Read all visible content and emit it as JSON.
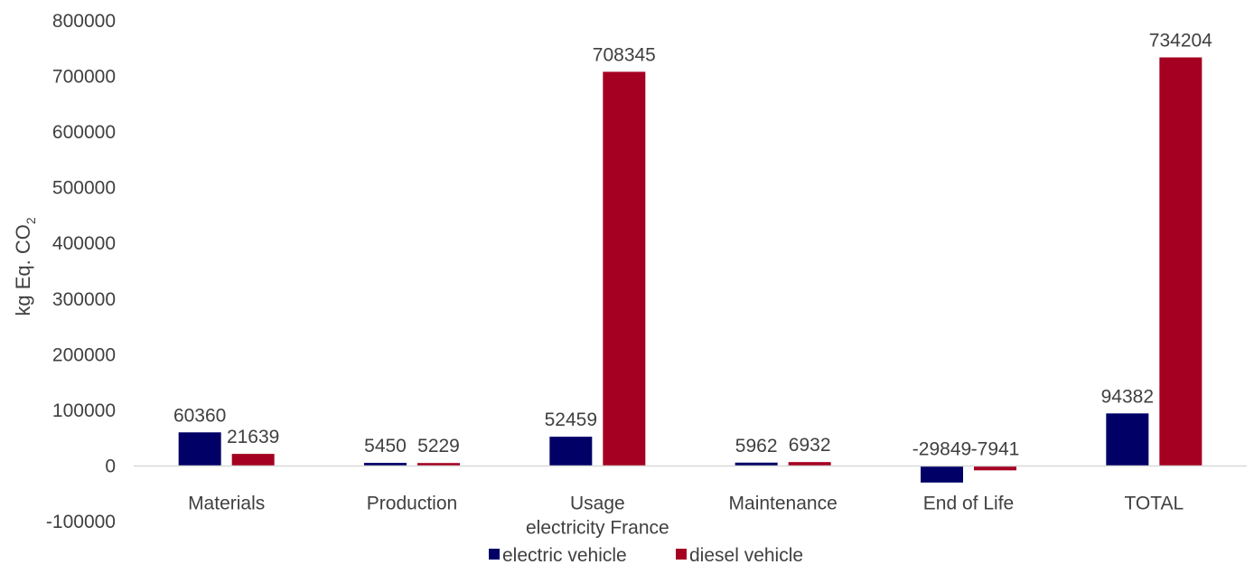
{
  "chart_data": {
    "type": "bar",
    "categories": [
      [
        "Materials"
      ],
      [
        "Production"
      ],
      [
        "Usage",
        "electricity France"
      ],
      [
        "Maintenance"
      ],
      [
        "End of Life"
      ],
      [
        "TOTAL"
      ]
    ],
    "series": [
      {
        "name": "electric vehicle",
        "color": "#000066",
        "values": [
          60360,
          5450,
          52459,
          5962,
          -29849,
          94382
        ]
      },
      {
        "name": "diesel vehicle",
        "color": "#A50021",
        "values": [
          21639,
          5229,
          708345,
          6932,
          -7941,
          734204
        ]
      }
    ],
    "ylabel": {
      "main": "kg Eq. CO",
      "subscript": "2"
    },
    "ylim": [
      -100000,
      800000
    ],
    "yticks": [
      -100000,
      0,
      100000,
      200000,
      300000,
      400000,
      500000,
      600000,
      700000,
      800000
    ],
    "ytick_labels": [
      "-100000",
      "0",
      "100000",
      "200000",
      "300000",
      "400000",
      "500000",
      "600000",
      "700000",
      "800000"
    ],
    "grid": false,
    "legend_position": "bottom-center"
  }
}
